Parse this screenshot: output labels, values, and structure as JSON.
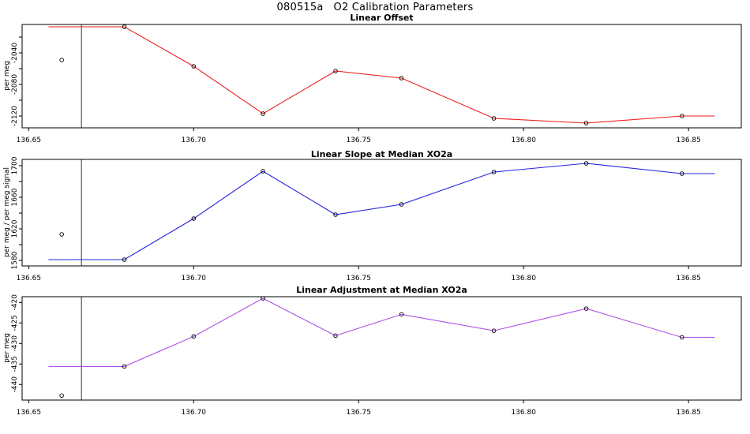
{
  "figure_title": "080515a   O2 Calibration Parameters",
  "colors": {
    "offset_line": "#ee2020",
    "slope_line": "#2222dd",
    "adjustment_line": "#b050e8",
    "reference_vline": "#555555",
    "axis": "#000000",
    "marker_stroke": "#000000"
  },
  "chart_data": [
    {
      "type": "line",
      "title": "Linear Offset",
      "xlabel": "",
      "ylabel": "per meg",
      "color": "#ee2020",
      "x": [
        136.679,
        136.7,
        136.721,
        136.743,
        136.763,
        136.791,
        136.819,
        136.848
      ],
      "y": [
        -2007,
        -2057,
        -2117,
        -2063,
        -2072,
        -2123,
        -2129,
        -2120
      ],
      "outlier_point": {
        "x": 136.66,
        "y": -2049
      },
      "line_extend": {
        "x_start": 136.656,
        "x_end": 136.858
      },
      "vline_x": 136.666,
      "xlim": [
        136.648,
        136.866
      ],
      "ylim": [
        -2135,
        -2004
      ],
      "xticks": [
        136.65,
        136.7,
        136.75,
        136.8,
        136.85
      ],
      "yticks": [
        -2120,
        -2100,
        -2080,
        -2060,
        -2040,
        -2020
      ],
      "ytick_labels": [
        -2120,
        -2080,
        -2040
      ],
      "grid": false,
      "legend": "none"
    },
    {
      "type": "line",
      "title": "Linear Slope at Median XO2a",
      "xlabel": "",
      "ylabel": "per meg / per meg signal",
      "color": "#2222dd",
      "x": [
        136.679,
        136.7,
        136.721,
        136.743,
        136.763,
        136.791,
        136.819,
        136.848
      ],
      "y": [
        1581,
        1633,
        1693,
        1638,
        1651,
        1692,
        1703,
        1690
      ],
      "outlier_point": {
        "x": 136.66,
        "y": 1613
      },
      "line_extend": {
        "x_start": 136.656,
        "x_end": 136.858
      },
      "vline_x": 136.666,
      "xlim": [
        136.648,
        136.866
      ],
      "ylim": [
        1573,
        1708
      ],
      "xticks": [
        136.65,
        136.7,
        136.75,
        136.8,
        136.85
      ],
      "yticks": [
        1580,
        1600,
        1620,
        1640,
        1660,
        1680,
        1700
      ],
      "ytick_labels": [
        1580,
        1620,
        1660,
        1700
      ],
      "grid": false,
      "legend": "none"
    },
    {
      "type": "line",
      "title": "Linear Adjustment at Median XO2a",
      "xlabel": "",
      "ylabel": "per meg",
      "color": "#b050e8",
      "x": [
        136.679,
        136.7,
        136.721,
        136.743,
        136.763,
        136.791,
        136.819,
        136.848
      ],
      "y": [
        -435.6,
        -428.3,
        -419.0,
        -428.1,
        -422.9,
        -426.9,
        -421.5,
        -428.5
      ],
      "outlier_point": {
        "x": 136.66,
        "y": -442.7
      },
      "line_extend": {
        "x_start": 136.656,
        "x_end": 136.858
      },
      "vline_x": 136.666,
      "xlim": [
        136.648,
        136.866
      ],
      "ylim": [
        -443.8,
        -418.6
      ],
      "xticks": [
        136.65,
        136.7,
        136.75,
        136.8,
        136.85
      ],
      "yticks": [
        -440,
        -435,
        -430,
        -425,
        -420
      ],
      "ytick_labels": [
        -440,
        -435,
        -430,
        -425,
        -420
      ],
      "grid": false,
      "legend": "none"
    }
  ]
}
